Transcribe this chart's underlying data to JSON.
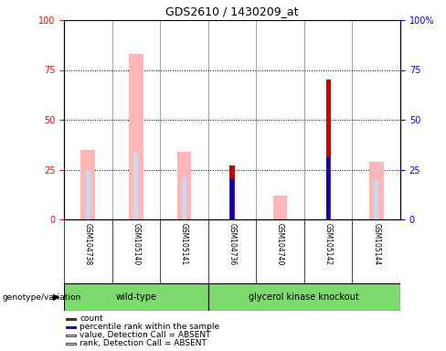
{
  "title": "GDS2610 / 1430209_at",
  "samples": [
    "GSM104738",
    "GSM105140",
    "GSM105141",
    "GSM104736",
    "GSM104740",
    "GSM105142",
    "GSM105144"
  ],
  "groups": [
    "wild-type",
    "wild-type",
    "wild-type",
    "glycerol kinase knockout",
    "glycerol kinase knockout",
    "glycerol kinase knockout",
    "glycerol kinase knockout"
  ],
  "value_absent": [
    35,
    83,
    34,
    null,
    12,
    null,
    29
  ],
  "rank_absent": [
    25,
    34,
    21,
    null,
    null,
    null,
    20
  ],
  "count": [
    null,
    null,
    null,
    27,
    null,
    70,
    null
  ],
  "percentile_rank": [
    null,
    null,
    null,
    20,
    null,
    31,
    null
  ],
  "ylim": [
    0,
    100
  ],
  "yticks": [
    0,
    25,
    50,
    75,
    100
  ],
  "color_value_absent": "#ffb6b6",
  "color_rank_absent": "#c8d8f0",
  "color_count": "#cc0000",
  "color_percentile": "#0000cc",
  "group_color": "#7ddb6e",
  "sample_bg_color": "#d0d0d0",
  "legend_items": [
    {
      "label": "count",
      "color": "#cc0000"
    },
    {
      "label": "percentile rank within the sample",
      "color": "#0000cc"
    },
    {
      "label": "value, Detection Call = ABSENT",
      "color": "#ffb6b6"
    },
    {
      "label": "rank, Detection Call = ABSENT",
      "color": "#c8d8f0"
    }
  ],
  "group_label": "genotype/variation"
}
